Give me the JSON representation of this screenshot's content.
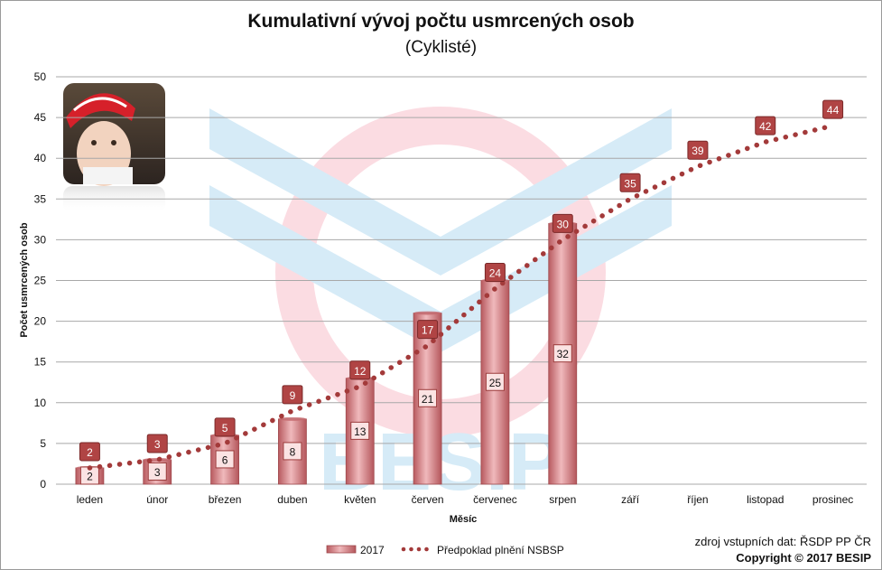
{
  "chart_data": {
    "type": "bar",
    "title": "Kumulativní vývoj počtu usmrcených osob",
    "subtitle": "(Cyklisté)",
    "xlabel": "Měsíc",
    "ylabel": "Počet usmrcených osob",
    "ylim": [
      0,
      50
    ],
    "yticks": [
      0,
      5,
      10,
      15,
      20,
      25,
      30,
      35,
      40,
      45,
      50
    ],
    "grid": true,
    "legend_position": "bottom",
    "categories": [
      "leden",
      "únor",
      "březen",
      "duben",
      "květen",
      "červen",
      "červenec",
      "srpen",
      "září",
      "říjen",
      "listopad",
      "prosinec"
    ],
    "series": [
      {
        "name": "2017",
        "kind": "bar",
        "values": [
          2,
          3,
          6,
          8,
          13,
          21,
          25,
          32,
          null,
          null,
          null,
          null
        ],
        "color": "#d9868a"
      },
      {
        "name": "Předpoklad plnění NSBSP",
        "kind": "dotted-line",
        "values": [
          2,
          3,
          5,
          9,
          12,
          17,
          24,
          30,
          35,
          39,
          42,
          44
        ],
        "color": "#a33a3a"
      }
    ]
  },
  "footer": {
    "source": "zdroj vstupních dat: ŘSDP PP ČR",
    "copyright": "Copyright © 2017  BESIP"
  },
  "colors": {
    "grid": "#a8a8a8",
    "bar_fill": "#d9868a",
    "line_label_fill": "#b04444",
    "watermark_blue": "#cfe8f6",
    "watermark_pink": "#fbd6de"
  },
  "watermark": {
    "text": "BESIP"
  }
}
